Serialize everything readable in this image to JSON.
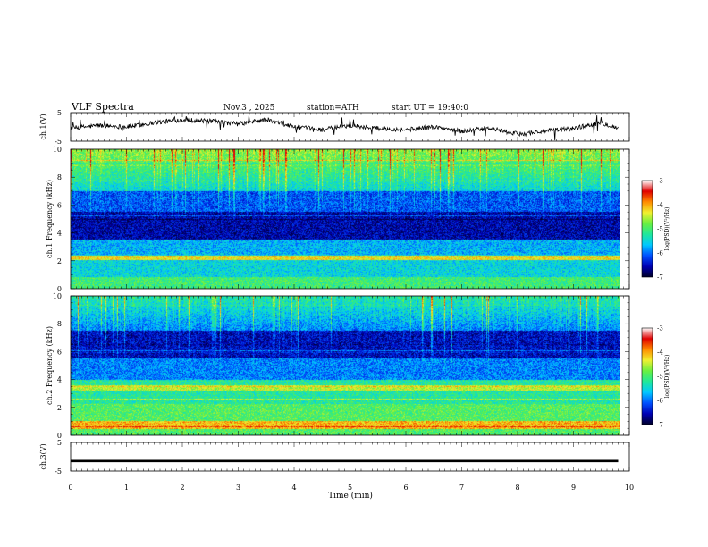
{
  "header": {
    "title": "VLF Spectra",
    "date": "Nov.3 , 2025",
    "station": "station=ATH",
    "start": "start UT = 19:40:0"
  },
  "colors": {
    "background": "#ffffff",
    "frame": "#000000",
    "trace": "#000000",
    "colormap": [
      "#00002a",
      "#0000b4",
      "#0050ff",
      "#00c8ff",
      "#20e89a",
      "#6af040",
      "#f0f030",
      "#ff8c00",
      "#e00000",
      "#ffffff"
    ]
  },
  "chart_data": [
    {
      "type": "line",
      "panel": "ch1-waveform",
      "ylabel": "ch.1(V)",
      "ylim": [
        -5,
        5
      ],
      "yticks": [
        "5",
        "-5"
      ],
      "xlim": [
        0,
        10
      ],
      "x": [
        0,
        0.5,
        1,
        1.5,
        2,
        2.5,
        3,
        3.5,
        4,
        4.5,
        5,
        5.5,
        6,
        6.5,
        7,
        7.5,
        8,
        8.5,
        9,
        9.5,
        9.8
      ],
      "y": [
        -0.5,
        0.5,
        0,
        1.5,
        2.5,
        2,
        1,
        2.5,
        0,
        -1,
        0.5,
        -0.5,
        -1,
        0,
        -1.5,
        -0.5,
        -2.5,
        -1.5,
        -0.5,
        1.5,
        -0.5
      ]
    },
    {
      "type": "heatmap",
      "panel": "ch1-spectrogram",
      "ylabel": "ch.1 Frequency (kHz)",
      "yticks": [
        "0",
        "2",
        "4",
        "6",
        "8",
        "10"
      ],
      "ylim": [
        0,
        10
      ],
      "xlim": [
        0,
        10
      ],
      "colorbar_label": "log(PSD)(V²/Hz)",
      "colorbar_ticks": [
        "-3",
        "-4",
        "-5",
        "-6",
        "-7"
      ],
      "colorbar_range": [
        -7,
        -3
      ]
    },
    {
      "type": "heatmap",
      "panel": "ch2-spectrogram",
      "ylabel": "ch.2 Frequency (kHz)",
      "yticks": [
        "0",
        "2",
        "4",
        "6",
        "8",
        "10"
      ],
      "ylim": [
        0,
        10
      ],
      "xlim": [
        0,
        10
      ],
      "colorbar_label": "log(PSD)(V²/Hz)",
      "colorbar_ticks": [
        "-3",
        "-4",
        "-5",
        "-6",
        "-7"
      ],
      "colorbar_range": [
        -7,
        -3
      ]
    },
    {
      "type": "line",
      "panel": "ch3-waveform",
      "ylabel": "ch.3(V)",
      "ylim": [
        -5,
        5
      ],
      "yticks": [
        "5",
        "-5"
      ],
      "xlim": [
        0,
        10
      ],
      "x": [
        0,
        9.8
      ],
      "y": [
        -1.5,
        -1.5
      ]
    }
  ],
  "xaxis": {
    "label": "Time (min)",
    "ticks": [
      "0",
      "1",
      "2",
      "3",
      "4",
      "5",
      "6",
      "7",
      "8",
      "9",
      "10"
    ],
    "range": [
      0,
      10
    ]
  }
}
